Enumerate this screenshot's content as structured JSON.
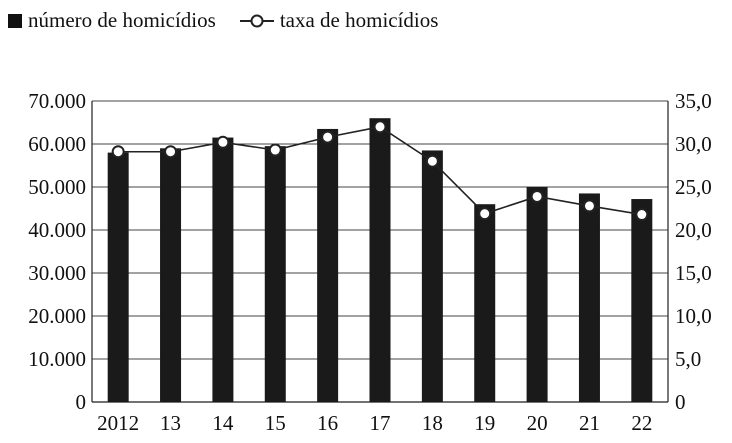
{
  "legend": {
    "bars_label": "número de homicídios",
    "line_label": "taxa de homicídios"
  },
  "chart_data": {
    "type": "bar",
    "categories": [
      "2012",
      "13",
      "14",
      "15",
      "16",
      "17",
      "18",
      "19",
      "20",
      "21",
      "22"
    ],
    "series": [
      {
        "name": "número de homicídios",
        "type": "bar",
        "axis": "left",
        "values": [
          58000,
          59000,
          61500,
          59500,
          63500,
          66000,
          58500,
          46000,
          50000,
          48500,
          47200
        ]
      },
      {
        "name": "taxa de homicídios",
        "type": "line",
        "axis": "right",
        "values": [
          29.1,
          29.1,
          30.2,
          29.3,
          30.8,
          32.0,
          28.0,
          21.9,
          23.9,
          22.8,
          21.8
        ]
      }
    ],
    "y_left": {
      "min": 0,
      "max": 70000,
      "ticks": [
        0,
        10000,
        20000,
        30000,
        40000,
        50000,
        60000,
        70000
      ],
      "tick_labels": [
        "0",
        "10.000",
        "20.000",
        "30.000",
        "40.000",
        "50.000",
        "60.000",
        "70.000"
      ]
    },
    "y_right": {
      "min": 0,
      "max": 35,
      "ticks": [
        0,
        5,
        10,
        15,
        20,
        25,
        30,
        35
      ],
      "tick_labels": [
        "0",
        "5,0",
        "10,0",
        "15,0",
        "20,0",
        "25,0",
        "30,0",
        "35,0"
      ]
    },
    "grid": true,
    "legend_position": "top-left",
    "colors": {
      "bar": "#1a1a1a",
      "line": "#222222",
      "marker_fill": "#ffffff",
      "grid": "#444444"
    }
  }
}
